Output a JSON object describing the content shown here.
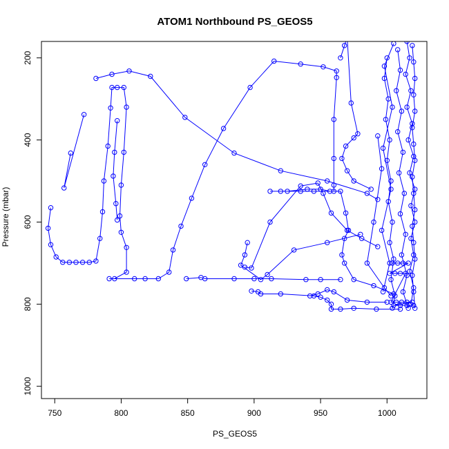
{
  "chart_data": {
    "type": "scatter",
    "title": "ATOM1 Northbound PS_GEOS5",
    "xlabel": "PS_GEOS5",
    "ylabel": "Pressure (mbar)",
    "xlim": [
      740,
      1030
    ],
    "ylim": [
      160,
      1030
    ],
    "y_reversed": true,
    "x_ticks": [
      750,
      800,
      850,
      900,
      950,
      1000
    ],
    "x_tick_labels": [
      "750",
      "800",
      "850",
      "900",
      "950",
      "1000"
    ],
    "y_ticks": [
      200,
      400,
      600,
      800,
      1000
    ],
    "y_tick_labels": [
      "200",
      "400",
      "600",
      "800",
      "1000"
    ],
    "series_color": "#0000ff",
    "marker": "open-circle",
    "grid": false,
    "legend": "none",
    "series": [
      {
        "points": [
          [
            747,
            565
          ],
          [
            745,
            615
          ],
          [
            747,
            655
          ],
          [
            751,
            685
          ],
          [
            756,
            698
          ],
          [
            761,
            698
          ],
          [
            766,
            698
          ],
          [
            771,
            698
          ],
          [
            776,
            698
          ],
          [
            781,
            695
          ],
          [
            784,
            640
          ],
          [
            786,
            575
          ],
          [
            787,
            500
          ],
          [
            790,
            415
          ],
          [
            792,
            322
          ],
          [
            793,
            272
          ],
          [
            797,
            272
          ],
          [
            802,
            272
          ],
          [
            804,
            320
          ],
          [
            802,
            430
          ],
          [
            800,
            510
          ],
          [
            799,
            585
          ],
          [
            800,
            625
          ],
          [
            804,
            662
          ],
          [
            804,
            722
          ],
          [
            795,
            738
          ],
          [
            791,
            738
          ],
          [
            810,
            738
          ],
          [
            818,
            738
          ],
          [
            828,
            738
          ],
          [
            836,
            722
          ],
          [
            839,
            668
          ],
          [
            845,
            610
          ],
          [
            853,
            542
          ],
          [
            863,
            460
          ],
          [
            877,
            372
          ],
          [
            897,
            272
          ],
          [
            915,
            208
          ],
          [
            935,
            215
          ],
          [
            952,
            222
          ],
          [
            962,
            232
          ],
          [
            962,
            248
          ],
          [
            960,
            350
          ],
          [
            960,
            445
          ],
          [
            960,
            510
          ],
          [
            960,
            525
          ],
          [
            945,
            525
          ],
          [
            935,
            525
          ],
          [
            920,
            525
          ],
          [
            912,
            525
          ],
          [
            925,
            525
          ],
          [
            940,
            520
          ],
          [
            950,
            520
          ],
          [
            957,
            525
          ],
          [
            965,
            525
          ],
          [
            969,
            578
          ],
          [
            971,
            620
          ],
          [
            968,
            640
          ],
          [
            966,
            680
          ],
          [
            968,
            700
          ],
          [
            975,
            740
          ],
          [
            990,
            755
          ],
          [
            1005,
            775
          ]
        ]
      },
      {
        "points": [
          [
            781,
            250
          ],
          [
            793,
            240
          ],
          [
            806,
            232
          ],
          [
            822,
            245
          ],
          [
            848,
            345
          ],
          [
            885,
            432
          ],
          [
            920,
            475
          ],
          [
            955,
            500
          ],
          [
            985,
            530
          ],
          [
            993,
            545
          ]
        ]
      },
      {
        "points": [
          [
            797,
            353
          ],
          [
            795,
            430
          ],
          [
            794,
            488
          ],
          [
            796,
            555
          ],
          [
            797,
            595
          ]
        ]
      },
      {
        "points": [
          [
            762,
            432
          ],
          [
            757,
            517
          ],
          [
            772,
            338
          ]
        ]
      },
      {
        "points": [
          [
            849,
            738
          ],
          [
            860,
            735
          ],
          [
            863,
            738
          ],
          [
            885,
            738
          ],
          [
            900,
            738
          ],
          [
            913,
            738
          ],
          [
            939,
            740
          ],
          [
            950,
            740
          ],
          [
            965,
            740
          ]
        ]
      },
      {
        "points": [
          [
            893,
            710
          ],
          [
            898,
            712
          ],
          [
            912,
            600
          ],
          [
            935,
            512
          ],
          [
            948,
            505
          ],
          [
            952,
            530
          ],
          [
            958,
            578
          ],
          [
            970,
            620
          ],
          [
            981,
            640
          ],
          [
            993,
            660
          ]
        ]
      },
      {
        "points": [
          [
            895,
            650
          ],
          [
            893,
            680
          ],
          [
            890,
            705
          ],
          [
            905,
            740
          ],
          [
            910,
            728
          ],
          [
            930,
            668
          ],
          [
            955,
            650
          ],
          [
            980,
            630
          ]
        ]
      },
      {
        "points": [
          [
            898,
            768
          ],
          [
            903,
            770
          ],
          [
            905,
            775
          ],
          [
            920,
            775
          ],
          [
            945,
            780
          ],
          [
            950,
            783
          ],
          [
            955,
            790
          ],
          [
            958,
            800
          ],
          [
            958,
            812
          ],
          [
            965,
            812
          ],
          [
            975,
            810
          ],
          [
            992,
            812
          ],
          [
            1010,
            812
          ]
        ]
      },
      {
        "points": [
          [
            942,
            780
          ],
          [
            948,
            775
          ],
          [
            955,
            765
          ],
          [
            960,
            770
          ],
          [
            970,
            790
          ],
          [
            985,
            795
          ],
          [
            1000,
            795
          ]
        ]
      },
      {
        "points": [
          [
            968,
            170
          ],
          [
            965,
            200
          ],
          [
            970,
            150
          ],
          [
            973,
            310
          ],
          [
            978,
            385
          ],
          [
            975,
            395
          ],
          [
            969,
            415
          ],
          [
            966,
            445
          ],
          [
            970,
            475
          ],
          [
            975,
            500
          ],
          [
            988,
            520
          ]
        ]
      },
      {
        "points": [
          [
            1004,
            700
          ],
          [
            1008,
            700
          ],
          [
            1012,
            700
          ],
          [
            1016,
            700
          ],
          [
            1002,
            725
          ],
          [
            1006,
            725
          ],
          [
            1010,
            725
          ],
          [
            1014,
            725
          ],
          [
            1003,
            795
          ],
          [
            1007,
            795
          ],
          [
            1011,
            795
          ],
          [
            1015,
            795
          ],
          [
            1019,
            795
          ],
          [
            1005,
            803
          ],
          [
            1010,
            803
          ],
          [
            1015,
            803
          ],
          [
            1020,
            803
          ]
        ]
      },
      {
        "points": [
          [
            1000,
            200
          ],
          [
            998,
            250
          ],
          [
            1001,
            300
          ],
          [
            999,
            350
          ],
          [
            1002,
            400
          ],
          [
            1000,
            450
          ],
          [
            1003,
            500
          ],
          [
            1001,
            550
          ],
          [
            1004,
            600
          ],
          [
            1002,
            650
          ],
          [
            1005,
            690
          ],
          [
            1003,
            740
          ],
          [
            1006,
            780
          ],
          [
            1004,
            810
          ]
        ]
      },
      {
        "points": [
          [
            1008,
            180
          ],
          [
            1010,
            230
          ],
          [
            1007,
            280
          ],
          [
            1011,
            330
          ],
          [
            1008,
            380
          ],
          [
            1012,
            430
          ],
          [
            1009,
            480
          ],
          [
            1013,
            530
          ],
          [
            1010,
            580
          ],
          [
            1014,
            630
          ],
          [
            1011,
            680
          ],
          [
            1015,
            730
          ],
          [
            1012,
            770
          ],
          [
            1016,
            810
          ]
        ]
      },
      {
        "points": [
          [
            1015,
            160
          ],
          [
            1017,
            200
          ],
          [
            1014,
            240
          ],
          [
            1018,
            280
          ],
          [
            1015,
            320
          ],
          [
            1019,
            360
          ],
          [
            1016,
            400
          ],
          [
            1020,
            440
          ],
          [
            1017,
            480
          ],
          [
            1021,
            520
          ],
          [
            1018,
            560
          ],
          [
            1021,
            600
          ],
          [
            1018,
            640
          ],
          [
            1020,
            680
          ],
          [
            1017,
            720
          ],
          [
            1020,
            760
          ],
          [
            1018,
            800
          ]
        ]
      },
      {
        "points": [
          [
            1019,
            170
          ],
          [
            1020,
            210
          ],
          [
            1021,
            250
          ],
          [
            1020,
            290
          ],
          [
            1021,
            330
          ],
          [
            1019,
            370
          ],
          [
            1020,
            410
          ],
          [
            1021,
            450
          ],
          [
            1019,
            490
          ],
          [
            1020,
            530
          ],
          [
            1021,
            570
          ],
          [
            1019,
            610
          ],
          [
            1020,
            650
          ],
          [
            1021,
            690
          ],
          [
            1019,
            730
          ],
          [
            1020,
            770
          ],
          [
            1021,
            810
          ]
        ]
      },
      {
        "points": [
          [
            993,
            390
          ],
          [
            996,
            470
          ],
          [
            990,
            600
          ],
          [
            985,
            700
          ],
          [
            998,
            760
          ],
          [
            1003,
            780
          ]
        ]
      },
      {
        "points": [
          [
            1005,
            165
          ],
          [
            998,
            220
          ],
          [
            1004,
            320
          ],
          [
            997,
            420
          ],
          [
            1003,
            520
          ],
          [
            996,
            620
          ],
          [
            1002,
            700
          ],
          [
            997,
            770
          ]
        ]
      }
    ]
  }
}
